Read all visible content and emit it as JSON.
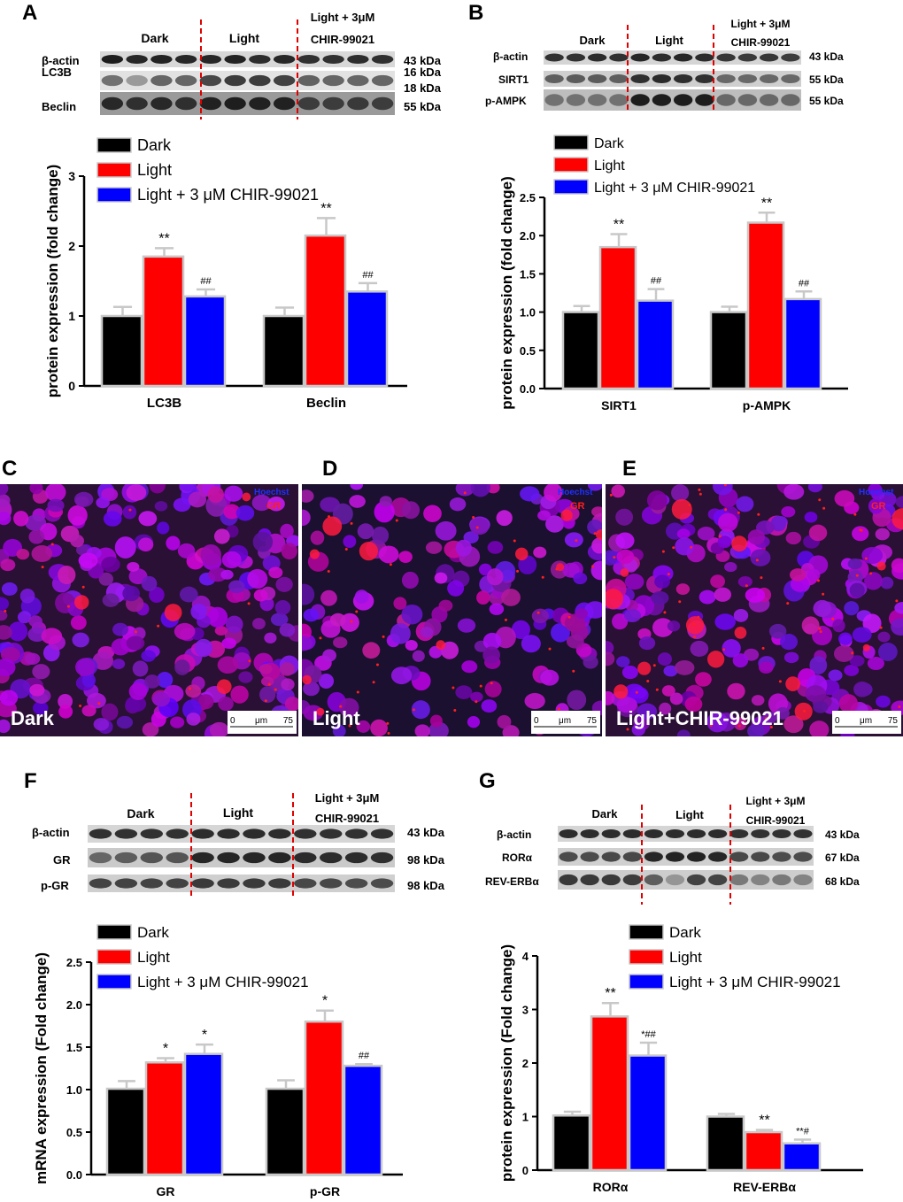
{
  "panels": {
    "A": {
      "letter": "A",
      "blot": {
        "groups": [
          "Dark",
          "Light",
          "Light + 3μM",
          "CHIR-99021"
        ],
        "rows": [
          {
            "name": "β-actin",
            "kda": "43 kDa"
          },
          {
            "name": "LC3B",
            "kda": "16 kDa"
          },
          {
            "name": "",
            "kda": "18 kDa"
          },
          {
            "name": "Beclin",
            "kda": "55 kDa"
          }
        ]
      }
    },
    "B": {
      "letter": "B",
      "blot": {
        "groups": [
          "Dark",
          "Light",
          "Light + 3μM",
          "CHIR-99021"
        ],
        "rows": [
          {
            "name": "β-actin",
            "kda": "43 kDa"
          },
          {
            "name": "SIRT1",
            "kda": "55 kDa"
          },
          {
            "name": "p-AMPK",
            "kda": "55 kDa"
          }
        ]
      }
    },
    "C": {
      "letter": "C",
      "condition": "Dark",
      "stains": [
        "Hoechst",
        "GR"
      ],
      "scale": [
        "0",
        "μm",
        "75"
      ]
    },
    "D": {
      "letter": "D",
      "condition": "Light",
      "stains": [
        "Hoechst",
        "GR"
      ],
      "scale": [
        "0",
        "μm",
        "75"
      ]
    },
    "E": {
      "letter": "E",
      "condition": "Light+CHIR-99021",
      "stains": [
        "Hoechst",
        "GR"
      ],
      "scale": [
        "0",
        "μm",
        "75"
      ]
    },
    "F": {
      "letter": "F",
      "blot": {
        "groups": [
          "Dark",
          "Light",
          "Light + 3μM",
          "CHIR-99021"
        ],
        "rows": [
          {
            "name": "β-actin",
            "kda": "43 kDa"
          },
          {
            "name": "GR",
            "kda": "98 kDa"
          },
          {
            "name": "p-GR",
            "kda": "98 kDa"
          }
        ]
      }
    },
    "G": {
      "letter": "G",
      "blot": {
        "groups": [
          "Dark",
          "Light",
          "Light + 3μM",
          "CHIR-99021"
        ],
        "rows": [
          {
            "name": "β-actin",
            "kda": "43 kDa"
          },
          {
            "name": "RORα",
            "kda": "67 kDa"
          },
          {
            "name": "REV-ERBα",
            "kda": "68 kDa"
          }
        ]
      }
    }
  },
  "colors": {
    "dark": "#000000",
    "light": "#ff0000",
    "chir": "#0000ff",
    "err": "#c8c8c8",
    "divider": "#e00000"
  },
  "chart_data": [
    {
      "id": "A",
      "type": "bar",
      "ylabel": "protein expression (fold change)",
      "ylim": [
        0,
        3
      ],
      "yticks": [
        "0",
        "1",
        "2",
        "3"
      ],
      "categories": [
        "LC3B",
        "Beclin"
      ],
      "series": [
        {
          "name": "Dark",
          "values": [
            1.0,
            1.0
          ],
          "errors": [
            0.13,
            0.12
          ],
          "annotations": [
            "",
            ""
          ]
        },
        {
          "name": "Light",
          "values": [
            1.85,
            2.15
          ],
          "errors": [
            0.12,
            0.25
          ],
          "annotations": [
            "**",
            "**"
          ]
        },
        {
          "name": "Light + 3 μM CHIR-99021",
          "values": [
            1.28,
            1.35
          ],
          "errors": [
            0.1,
            0.12
          ],
          "annotations": [
            "##",
            "##"
          ]
        }
      ]
    },
    {
      "id": "B",
      "type": "bar",
      "ylabel": "protein expression (fold change)",
      "ylim": [
        0,
        2.5
      ],
      "yticks": [
        "0.0",
        "0.5",
        "1.0",
        "1.5",
        "2.0",
        "2.5"
      ],
      "categories": [
        "SIRT1",
        "p-AMPK"
      ],
      "series": [
        {
          "name": "Dark",
          "values": [
            1.0,
            1.0
          ],
          "errors": [
            0.08,
            0.07
          ],
          "annotations": [
            "",
            ""
          ]
        },
        {
          "name": "Light",
          "values": [
            1.85,
            2.17
          ],
          "errors": [
            0.17,
            0.13
          ],
          "annotations": [
            "**",
            "**"
          ]
        },
        {
          "name": "Light + 3 μM CHIR-99021",
          "values": [
            1.15,
            1.17
          ],
          "errors": [
            0.15,
            0.1
          ],
          "annotations": [
            "##",
            "##"
          ]
        }
      ]
    },
    {
      "id": "F",
      "type": "bar",
      "ylabel": "mRNA expression (Fold change)",
      "ylim": [
        0,
        2.5
      ],
      "yticks": [
        "0.0",
        "0.5",
        "1.0",
        "1.5",
        "2.0",
        "2.5"
      ],
      "categories": [
        "GR",
        "p-GR"
      ],
      "series": [
        {
          "name": "Dark",
          "values": [
            1.01,
            1.01
          ],
          "errors": [
            0.09,
            0.1
          ],
          "annotations": [
            "",
            ""
          ]
        },
        {
          "name": "Light",
          "values": [
            1.32,
            1.8
          ],
          "errors": [
            0.05,
            0.13
          ],
          "annotations": [
            "*",
            "*"
          ]
        },
        {
          "name": "Light + 3 μM CHIR-99021",
          "values": [
            1.42,
            1.28
          ],
          "errors": [
            0.11,
            0.02
          ],
          "annotations": [
            "*",
            "##"
          ]
        }
      ]
    },
    {
      "id": "G",
      "type": "bar",
      "ylabel": "protein expression (Fold change)",
      "ylim": [
        0,
        4
      ],
      "yticks": [
        "0",
        "1",
        "2",
        "3",
        "4"
      ],
      "categories": [
        "RORα",
        "REV-ERBα"
      ],
      "series": [
        {
          "name": "Dark",
          "values": [
            1.02,
            1.0
          ],
          "errors": [
            0.07,
            0.05
          ],
          "annotations": [
            "",
            ""
          ]
        },
        {
          "name": "Light",
          "values": [
            2.87,
            0.71
          ],
          "errors": [
            0.25,
            0.04
          ],
          "annotations": [
            "**",
            "**"
          ]
        },
        {
          "name": "Light + 3 μM CHIR-99021",
          "values": [
            2.14,
            0.5
          ],
          "errors": [
            0.24,
            0.07
          ],
          "annotations": [
            "*##",
            "**#"
          ]
        }
      ]
    }
  ]
}
